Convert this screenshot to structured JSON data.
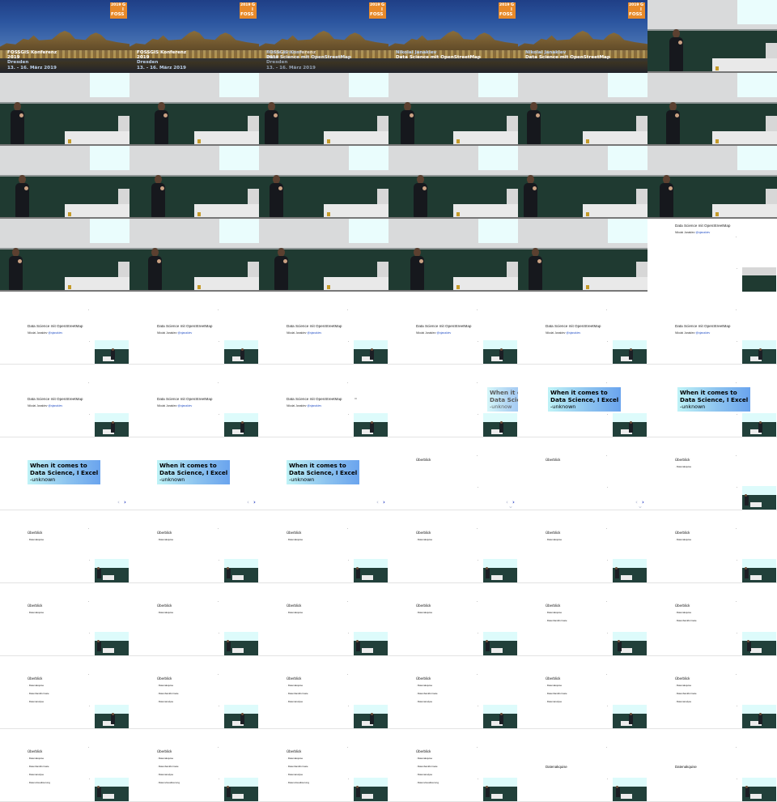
{
  "grid": {
    "columns": 6,
    "rows": 11
  },
  "title_card": {
    "logo_year": "2019",
    "logo_letters": [
      "G",
      "I",
      "FOSS"
    ],
    "conference_line1": "FOSSGIS Konferenz",
    "conference_line2": "2019",
    "conference_city": "Dresden",
    "conference_dates": "13. - 16. März 2019",
    "speaker": "Nikolai Janakiev",
    "talk_title": "Data Science mit OpenStreetMap"
  },
  "slides": {
    "title": "Data Science mit OpenStreetMap",
    "author_prefix": "Nikolai Janakiev",
    "author_handle": "@njanakiev",
    "quote_line1": "When it comes to",
    "quote_line2": "Data Science, I Excel",
    "quote_attribution": "-unknown",
    "quote_partial_line1": "When it c",
    "quote_partial_line2": "Data Scie",
    "quote_partial_attribution": "-unknow",
    "overview_heading": "Überblick",
    "bullets": [
      "Datenakquise",
      "Datenbankformate",
      "Datenanalyse",
      "Datenvisualisierung"
    ],
    "next_heading": "Datenakquise",
    "nav_prev": "‹",
    "nav_next": "›",
    "nav_down": "⌄"
  },
  "frames": [
    "title-plain",
    "title-plain",
    "title-speaker",
    "title-talk",
    "title-talk",
    "hall",
    "hall",
    "hall",
    "hall",
    "hall",
    "hall",
    "hall",
    "hall",
    "hall",
    "hall",
    "hall",
    "hall",
    "hall",
    "hall",
    "hall",
    "hall",
    "hall",
    "hall",
    "slide-title-pip-hall",
    "slide-title",
    "slide-title",
    "slide-title",
    "slide-title",
    "slide-title",
    "slide-title",
    "slide-title",
    "slide-title",
    "slide-blank-dot",
    "quote-partial",
    "quote",
    "quote",
    "quote-left",
    "quote-left",
    "quote-left",
    "overview-heading",
    "overview-heading",
    "overview-1",
    "overview-1",
    "overview-1",
    "overview-1",
    "overview-1",
    "overview-1",
    "overview-1",
    "overview-1",
    "overview-1",
    "overview-1",
    "overview-1",
    "overview-2",
    "overview-2",
    "overview-3",
    "overview-3",
    "overview-3",
    "overview-3",
    "overview-3",
    "overview-3",
    "overview-4",
    "overview-4",
    "overview-4",
    "overview-4",
    "next-heading",
    "next-heading"
  ],
  "colors": {
    "accent_orange": "#e88a2a",
    "board_green": "#1f3a31",
    "quote_gradient_start": "#bff3f7",
    "quote_gradient_end": "#6aa4ee",
    "link_blue": "#2a55c7"
  }
}
